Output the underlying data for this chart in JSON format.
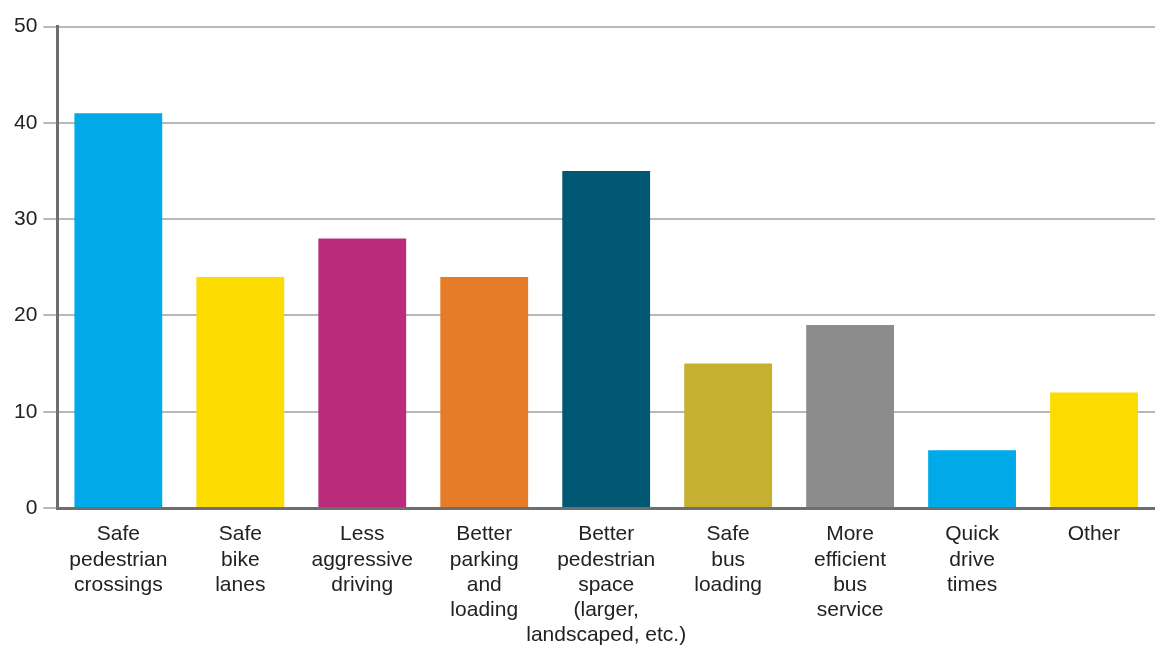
{
  "chart_data": {
    "type": "bar",
    "categories": [
      "Safe\npedestrian\ncrossings",
      "Safe\nbike\nlanes",
      "Less\naggressive\ndriving",
      "Better\nparking\nand\nloading",
      "Better\npedestrian\nspace\n(larger,\nlandscaped, etc.)",
      "Safe\nbus\nloading",
      "More\nefficient\nbus\nservice",
      "Quick\ndrive\ntimes",
      "Other"
    ],
    "values": [
      41,
      24,
      28,
      24,
      35,
      15,
      19,
      6,
      12
    ],
    "colors": [
      "#00a9e8",
      "#fbdb00",
      "#bb2b7c",
      "#e67c27",
      "#005874",
      "#c5b02f",
      "#8c8c8c",
      "#00a9e8",
      "#fbdb00"
    ],
    "ylim": [
      0,
      50
    ],
    "yticks": [
      0,
      10,
      20,
      30,
      40,
      50
    ],
    "grid": "y",
    "legend": false
  }
}
